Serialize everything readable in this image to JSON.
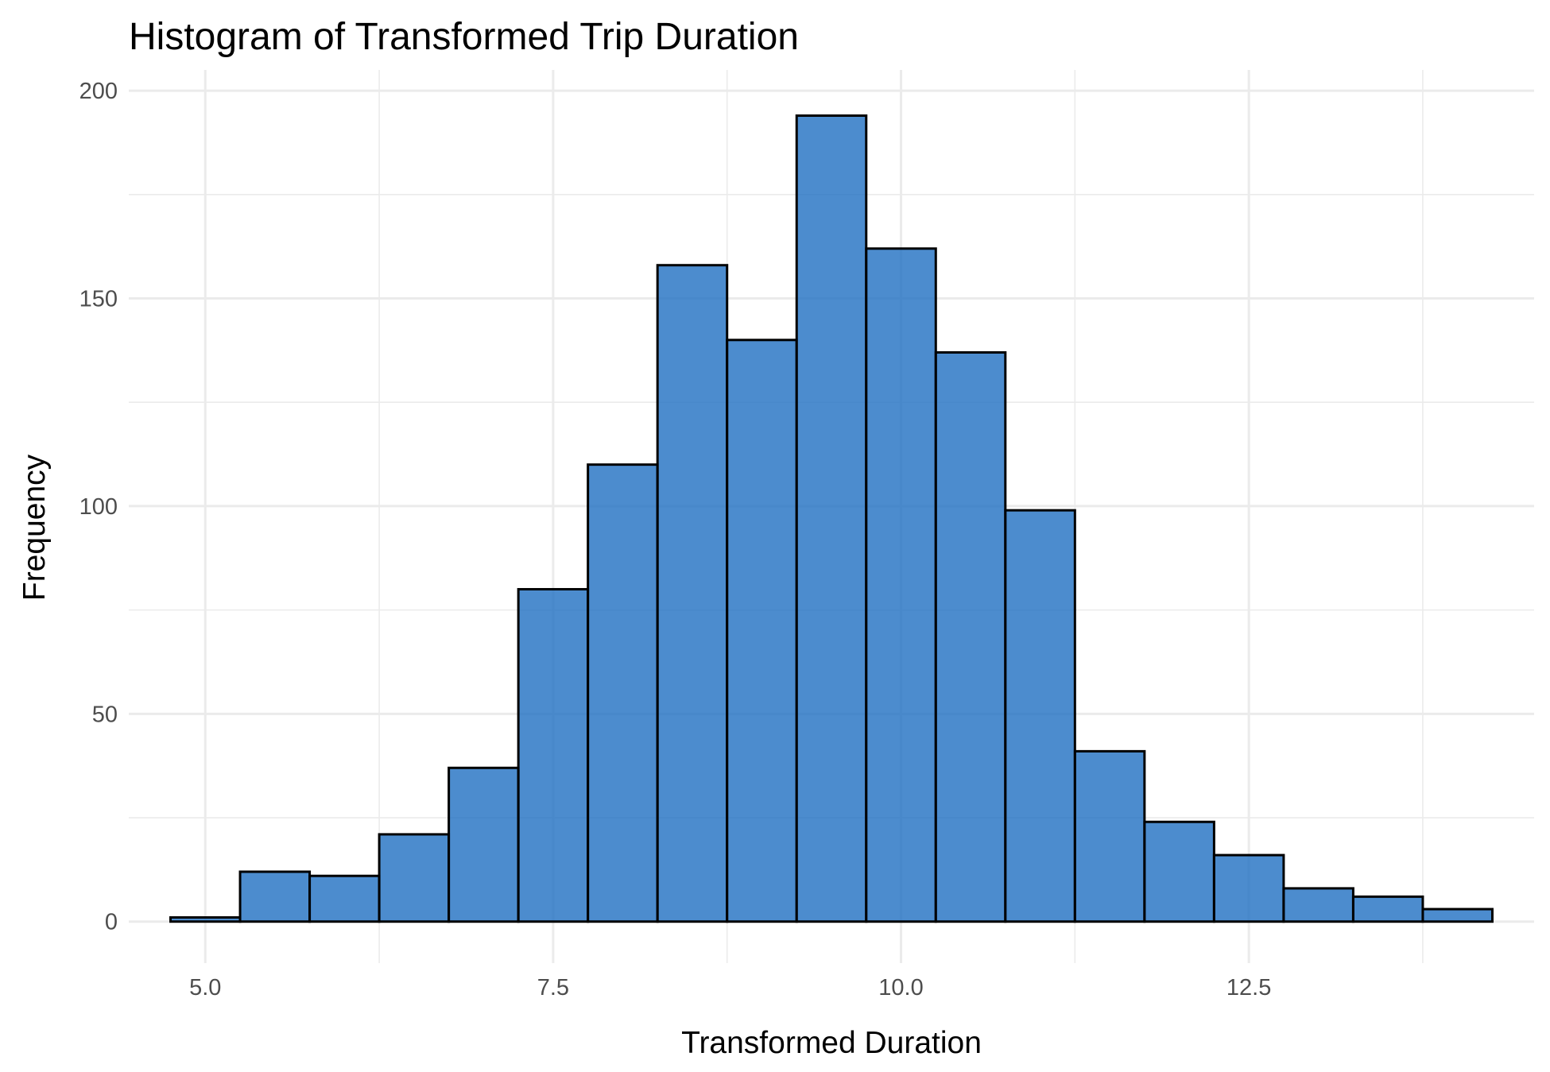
{
  "chart_data": {
    "type": "bar",
    "subtype": "histogram",
    "title": "Histogram of Transformed Trip Duration",
    "xlabel": "Transformed Duration",
    "ylabel": "Frequency",
    "xlim": [
      4.45,
      14.55
    ],
    "ylim": [
      -10,
      205
    ],
    "x_ticks": [
      5.0,
      7.5,
      10.0,
      12.5
    ],
    "x_tick_labels": [
      "5.0",
      "7.5",
      "10.0",
      "12.5"
    ],
    "y_ticks": [
      0,
      50,
      100,
      150,
      200
    ],
    "y_tick_labels": [
      "0",
      "50",
      "100",
      "150",
      "200"
    ],
    "bin_width": 0.5,
    "bins": [
      {
        "x_start": 4.75,
        "x_end": 5.25,
        "value": 1
      },
      {
        "x_start": 5.25,
        "x_end": 5.75,
        "value": 12
      },
      {
        "x_start": 5.75,
        "x_end": 6.25,
        "value": 11
      },
      {
        "x_start": 6.25,
        "x_end": 6.75,
        "value": 21
      },
      {
        "x_start": 6.75,
        "x_end": 7.25,
        "value": 37
      },
      {
        "x_start": 7.25,
        "x_end": 7.75,
        "value": 80
      },
      {
        "x_start": 7.75,
        "x_end": 8.25,
        "value": 110
      },
      {
        "x_start": 8.25,
        "x_end": 8.75,
        "value": 158
      },
      {
        "x_start": 8.75,
        "x_end": 9.25,
        "value": 140
      },
      {
        "x_start": 9.25,
        "x_end": 9.75,
        "value": 194
      },
      {
        "x_start": 9.75,
        "x_end": 10.25,
        "value": 162
      },
      {
        "x_start": 10.25,
        "x_end": 10.75,
        "value": 137
      },
      {
        "x_start": 10.75,
        "x_end": 11.25,
        "value": 99
      },
      {
        "x_start": 11.25,
        "x_end": 11.75,
        "value": 41
      },
      {
        "x_start": 11.75,
        "x_end": 12.25,
        "value": 24
      },
      {
        "x_start": 12.25,
        "x_end": 12.75,
        "value": 16
      },
      {
        "x_start": 12.75,
        "x_end": 13.25,
        "value": 8
      },
      {
        "x_start": 13.25,
        "x_end": 13.75,
        "value": 6
      },
      {
        "x_start": 13.75,
        "x_end": 14.25,
        "value": 3
      }
    ],
    "colors": {
      "fill": "#1f6fc2",
      "outline": "#000000",
      "grid": "#ebebeb"
    },
    "grid": true,
    "legend": "none"
  }
}
